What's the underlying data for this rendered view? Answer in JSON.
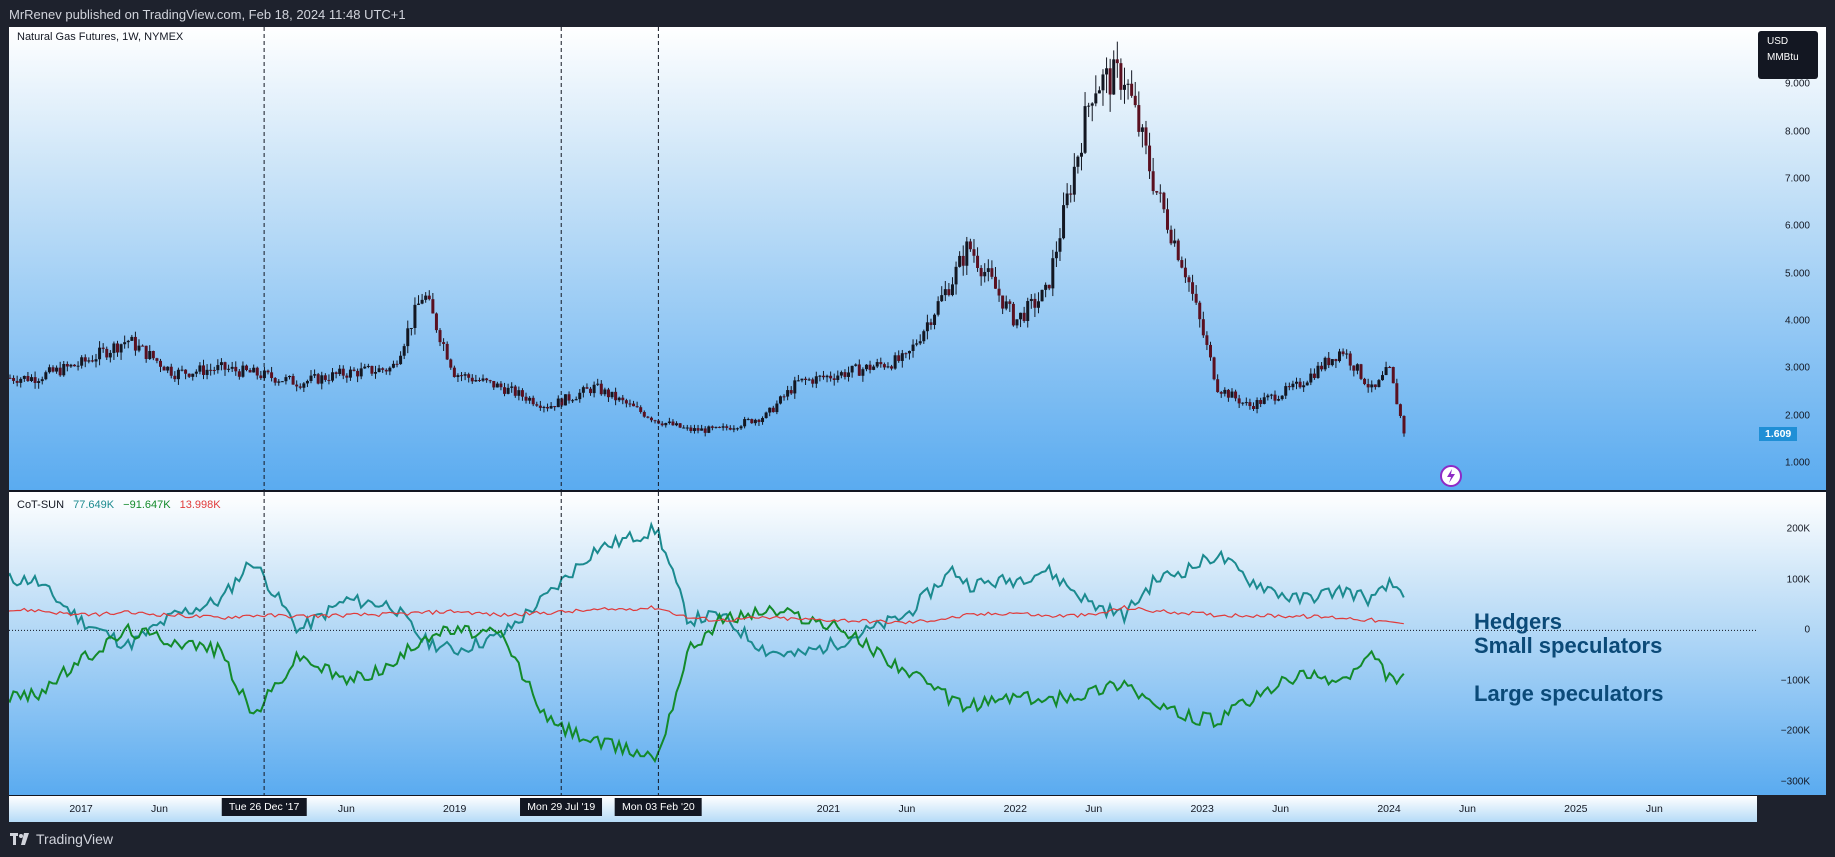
{
  "header": {
    "publish_text": "MrRenev published on TradingView.com, Feb 18, 2024 11:48 UTC+1"
  },
  "footer": {
    "brand": "TradingView"
  },
  "colors": {
    "hedgers": "#1b8a8f",
    "large_speculators": "#138a2a",
    "small_speculators": "#e03a3a",
    "price_label_bg": "#1f8fd6"
  },
  "chart_data": [
    {
      "type": "candlestick",
      "title": "Natural Gas Futures, 1W, NYMEX",
      "unit_label": [
        "USD",
        "MMBtu"
      ],
      "current_price": "1.609",
      "ylim": [
        0.6,
        10.0
      ],
      "y_ticks": [
        "9.000",
        "8.000",
        "7.000",
        "6.000",
        "5.000",
        "4.000",
        "3.000",
        "2.000",
        "1.000"
      ],
      "x": [
        "2016-10",
        "2017-01",
        "2017-04",
        "2017-07",
        "2017-10",
        "2017-12",
        "2018-03",
        "2018-06",
        "2018-09",
        "2018-11",
        "2019-01",
        "2019-04",
        "2019-07",
        "2019-10",
        "2020-02",
        "2020-04",
        "2020-06",
        "2020-09",
        "2020-11",
        "2021-02",
        "2021-06",
        "2021-09",
        "2021-10",
        "2022-01",
        "2022-03",
        "2022-06",
        "2022-08",
        "2022-10",
        "2022-12",
        "2023-02",
        "2023-04",
        "2023-07",
        "2023-10",
        "2023-12",
        "2024-01",
        "2024-02"
      ],
      "values": [
        2.8,
        3.1,
        3.6,
        2.9,
        3.0,
        2.9,
        2.7,
        2.9,
        3.0,
        4.6,
        2.9,
        2.6,
        2.2,
        2.6,
        1.9,
        1.7,
        1.7,
        2.0,
        2.7,
        2.9,
        3.2,
        4.9,
        5.6,
        4.0,
        4.6,
        9.0,
        9.2,
        6.8,
        5.0,
        2.6,
        2.2,
        2.6,
        3.4,
        2.5,
        3.0,
        1.609
      ]
    },
    {
      "type": "line",
      "title": "CoT-SUN",
      "legend_values": [
        "77.649K",
        "−91.647K",
        "13.998K"
      ],
      "ylim": [
        -300000,
        250000
      ],
      "y_ticks": [
        "200K",
        "100K",
        "0",
        "−100K",
        "−200K",
        "−300K"
      ],
      "x": [
        "2016-10",
        "2017-01",
        "2017-04",
        "2017-07",
        "2017-10",
        "2017-12",
        "2018-03",
        "2018-06",
        "2018-09",
        "2018-11",
        "2019-01",
        "2019-04",
        "2019-07",
        "2019-10",
        "2020-02",
        "2020-04",
        "2020-06",
        "2020-09",
        "2020-11",
        "2021-02",
        "2021-06",
        "2021-09",
        "2021-10",
        "2022-01",
        "2022-03",
        "2022-06",
        "2022-08",
        "2022-10",
        "2022-12",
        "2023-02",
        "2023-04",
        "2023-07",
        "2023-10",
        "2023-12",
        "2024-01",
        "2024-02"
      ],
      "series": [
        {
          "name": "Hedgers",
          "values": [
            100000,
            20000,
            -30000,
            30000,
            60000,
            140000,
            0,
            60000,
            50000,
            -20000,
            -40000,
            -10000,
            70000,
            160000,
            200000,
            20000,
            30000,
            -40000,
            -50000,
            -20000,
            30000,
            120000,
            90000,
            100000,
            120000,
            50000,
            30000,
            100000,
            120000,
            150000,
            100000,
            60000,
            80000,
            60000,
            90000,
            77649
          ]
        },
        {
          "name": "Large speculators",
          "values": [
            -130000,
            -60000,
            0,
            -20000,
            -40000,
            -170000,
            -50000,
            -100000,
            -70000,
            -10000,
            0,
            -10000,
            -180000,
            -220000,
            -250000,
            -40000,
            20000,
            40000,
            30000,
            0,
            -80000,
            -140000,
            -150000,
            -130000,
            -140000,
            -120000,
            -100000,
            -150000,
            -170000,
            -180000,
            -140000,
            -90000,
            -100000,
            -50000,
            -95000,
            -91647
          ]
        },
        {
          "name": "Small speculators",
          "values": [
            40000,
            30000,
            35000,
            30000,
            25000,
            30000,
            28000,
            30000,
            32000,
            35000,
            38000,
            30000,
            35000,
            40000,
            45000,
            25000,
            20000,
            25000,
            22000,
            20000,
            15000,
            25000,
            30000,
            35000,
            28000,
            30000,
            45000,
            38000,
            35000,
            30000,
            30000,
            28000,
            25000,
            20000,
            15000,
            13998
          ]
        }
      ]
    }
  ],
  "time_axis": {
    "labels": [
      "2017",
      "Jun",
      "Jun",
      "2019",
      "Jun",
      "2021",
      "Jun",
      "2022",
      "Jun",
      "2023",
      "Jun",
      "2024",
      "Jun",
      "2025",
      "Jun"
    ],
    "highlighted": [
      "Tue 26 Dec '17",
      "Mon 29 Jul '19",
      "Mon 03 Feb '20"
    ]
  },
  "annotations": [
    "Hedgers",
    "Small speculators",
    "Large speculators"
  ]
}
